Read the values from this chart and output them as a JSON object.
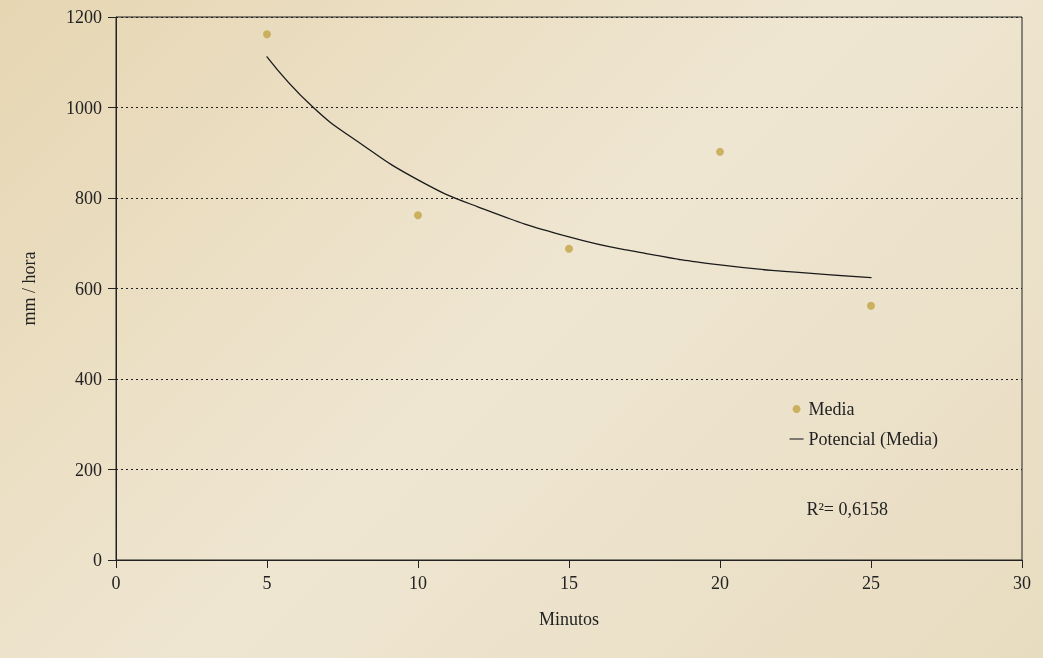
{
  "chart_data": {
    "type": "scatter",
    "xlabel": "Minutos",
    "ylabel": "mm / hora",
    "xlim": [
      0,
      30
    ],
    "xticks": [
      0,
      5,
      10,
      15,
      20,
      25,
      30
    ],
    "ylim": [
      0,
      1200
    ],
    "yticks": [
      0,
      200,
      400,
      600,
      800,
      1000,
      1200
    ],
    "grid": "y",
    "legend": "bottom right",
    "marker": "circle",
    "series": [
      {
        "name": "Media",
        "color": "#c2a445",
        "x": [
          5,
          10,
          15,
          20,
          25
        ],
        "values": [
          1162,
          762,
          688,
          902,
          562
        ]
      },
      {
        "name": "Potencial (Media)",
        "type": "line",
        "color": "#1a1a1a",
        "marker": "none",
        "x": [
          5,
          6.5,
          8,
          10,
          12,
          15,
          17.5,
          20,
          22.5,
          25
        ],
        "values": [
          1112,
          1002,
          925,
          840,
          780,
          714,
          678,
          652,
          636,
          624
        ]
      }
    ],
    "annotations": [
      "R²= 0,6158"
    ]
  }
}
